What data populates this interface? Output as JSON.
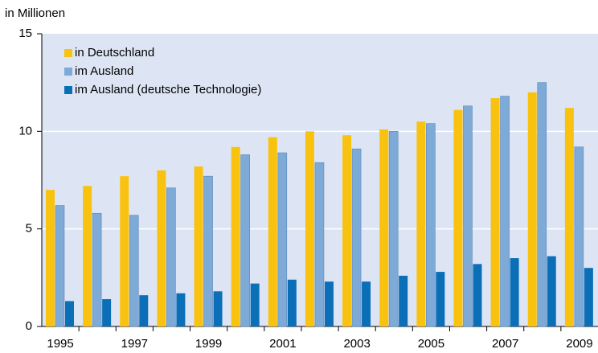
{
  "chart_data": {
    "type": "bar",
    "y_label": "in Millionen",
    "categories": [
      "1995",
      null,
      "1997",
      null,
      "1999",
      null,
      "2001",
      null,
      "2003",
      null,
      "2005",
      null,
      "2007",
      null,
      "2009"
    ],
    "series": [
      {
        "name": "in Deutschland",
        "color": "#f9c20f",
        "values": [
          7.0,
          7.2,
          7.7,
          8.0,
          8.2,
          9.2,
          9.7,
          10.0,
          9.8,
          10.1,
          10.5,
          11.1,
          11.7,
          12.0,
          11.2
        ]
      },
      {
        "name": "im Ausland",
        "color": "#7eaad8",
        "values": [
          6.2,
          5.8,
          5.7,
          7.1,
          7.7,
          8.8,
          8.9,
          8.4,
          9.1,
          10.0,
          10.4,
          11.3,
          11.8,
          12.5,
          9.2
        ]
      },
      {
        "name": "im Ausland (deutsche Technologie)",
        "color": "#0b6fb8",
        "values": [
          1.3,
          1.4,
          1.6,
          1.7,
          1.8,
          2.2,
          2.4,
          2.3,
          2.3,
          2.6,
          2.8,
          3.2,
          3.5,
          3.6,
          3.0
        ]
      }
    ],
    "ylim": [
      0,
      15
    ],
    "yticks": [
      0,
      5,
      10,
      15
    ],
    "grid": true,
    "legend": "top-left"
  }
}
